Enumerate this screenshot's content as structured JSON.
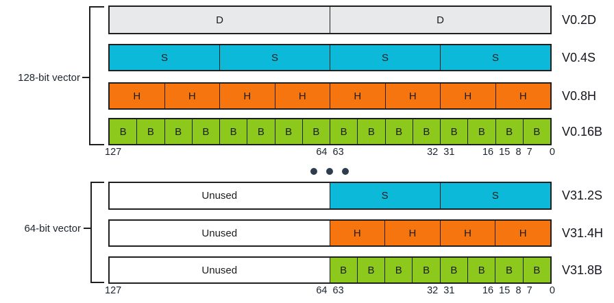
{
  "colors": {
    "gray": "#e8e9ea",
    "cyan": "#0db9d8",
    "orange": "#f6750f",
    "green": "#8dc81c",
    "white": "#ffffff",
    "dot": "#2e3d4d",
    "border": "#1f1f1f"
  },
  "top_group": {
    "bracket_label": "128-bit vector",
    "rows": [
      {
        "register": "V0.2D",
        "fill": "gray",
        "cells": [
          "D",
          "D"
        ]
      },
      {
        "register": "V0.4S",
        "fill": "cyan",
        "cells": [
          "S",
          "S",
          "S",
          "S"
        ]
      },
      {
        "register": "V0.8H",
        "fill": "orange",
        "cells": [
          "H",
          "H",
          "H",
          "H",
          "H",
          "H",
          "H",
          "H"
        ]
      },
      {
        "register": "V0.16B",
        "fill": "green",
        "cells": [
          "B",
          "B",
          "B",
          "B",
          "B",
          "B",
          "B",
          "B",
          "B",
          "B",
          "B",
          "B",
          "B",
          "B",
          "B",
          "B"
        ]
      }
    ],
    "scale": [
      "127",
      "64",
      "63",
      "32",
      "31",
      "16",
      "15",
      "8",
      "7",
      "0"
    ]
  },
  "separator": {
    "dot_count": 3
  },
  "bottom_group": {
    "bracket_label": "64-bit vector",
    "rows": [
      {
        "register": "V31.2S",
        "unused_label": "Unused",
        "fill": "cyan",
        "cells": [
          "S",
          "S"
        ]
      },
      {
        "register": "V31.4H",
        "unused_label": "Unused",
        "fill": "orange",
        "cells": [
          "H",
          "H",
          "H",
          "H"
        ]
      },
      {
        "register": "V31.8B",
        "unused_label": "Unused",
        "fill": "green",
        "cells": [
          "B",
          "B",
          "B",
          "B",
          "B",
          "B",
          "B",
          "B"
        ]
      }
    ],
    "scale": [
      "127",
      "64",
      "63",
      "32",
      "31",
      "16",
      "15",
      "8",
      "7",
      "0"
    ]
  }
}
